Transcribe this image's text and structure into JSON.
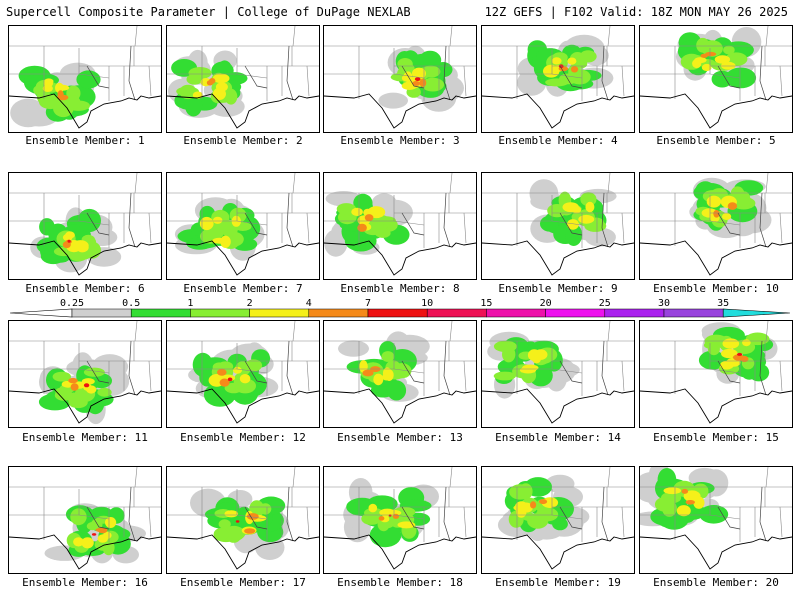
{
  "header": {
    "title": "Supercell Composite Parameter | College of DuPage NEXLAB",
    "run_info": "12Z GEFS | F102 Valid: 18Z MON MAY 26 2025"
  },
  "colorbar": {
    "levels": [
      {
        "label": "0.25",
        "color": "#cfcfcf"
      },
      {
        "label": "0.5",
        "color": "#33dd33"
      },
      {
        "label": "1",
        "color": "#88ee33"
      },
      {
        "label": "2",
        "color": "#f5f01a"
      },
      {
        "label": "4",
        "color": "#f58a1a"
      },
      {
        "label": "7",
        "color": "#ee1111"
      },
      {
        "label": "10",
        "color": "#ee1155"
      },
      {
        "label": "15",
        "color": "#ee11aa"
      },
      {
        "label": "20",
        "color": "#ee11ee"
      },
      {
        "label": "25",
        "color": "#aa22ee"
      },
      {
        "label": "30",
        "color": "#9944dd"
      },
      {
        "label": "35",
        "color": "#22dddd"
      }
    ]
  },
  "members": [
    {
      "label": "Ensemble Member: 1",
      "max_level": 4
    },
    {
      "label": "Ensemble Member: 2",
      "max_level": 4
    },
    {
      "label": "Ensemble Member: 3",
      "max_level": 7
    },
    {
      "label": "Ensemble Member: 4",
      "max_level": 7
    },
    {
      "label": "Ensemble Member: 5",
      "max_level": 4
    },
    {
      "label": "Ensemble Member: 6",
      "max_level": 7
    },
    {
      "label": "Ensemble Member: 7",
      "max_level": 2
    },
    {
      "label": "Ensemble Member: 8",
      "max_level": 4
    },
    {
      "label": "Ensemble Member: 9",
      "max_level": 2
    },
    {
      "label": "Ensemble Member: 10",
      "max_level": 4
    },
    {
      "label": "Ensemble Member: 11",
      "max_level": 7
    },
    {
      "label": "Ensemble Member: 12",
      "max_level": 7
    },
    {
      "label": "Ensemble Member: 13",
      "max_level": 4
    },
    {
      "label": "Ensemble Member: 14",
      "max_level": 2
    },
    {
      "label": "Ensemble Member: 15",
      "max_level": 7
    },
    {
      "label": "Ensemble Member: 16",
      "max_level": 7
    },
    {
      "label": "Ensemble Member: 17",
      "max_level": 7
    },
    {
      "label": "Ensemble Member: 18",
      "max_level": 7
    },
    {
      "label": "Ensemble Member: 19",
      "max_level": 4
    },
    {
      "label": "Ensemble Member: 20",
      "max_level": 4
    }
  ]
}
